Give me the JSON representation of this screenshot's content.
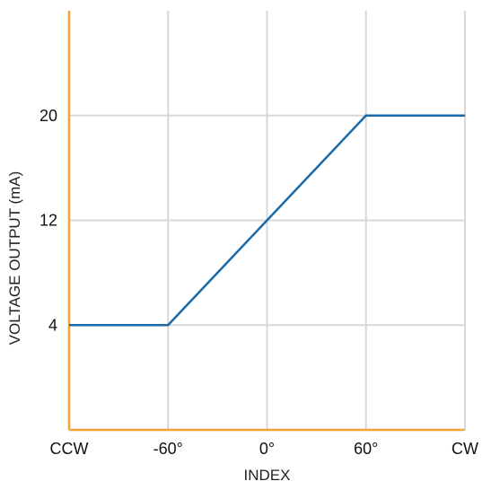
{
  "chart_data": {
    "type": "line",
    "title": "",
    "xlabel": "INDEX",
    "ylabel": "VOLTAGE OUTPUT (mA)",
    "x_categories": [
      "CCW",
      "-60°",
      "0°",
      "60°",
      "CW"
    ],
    "y_ticks": [
      4,
      12,
      20
    ],
    "ylim": [
      -4,
      28
    ],
    "grid": true,
    "legend": "none",
    "series": [
      {
        "points": [
          {
            "x": "CCW",
            "y": 4
          },
          {
            "x": "-60°",
            "y": 4
          },
          {
            "x": "0°",
            "y": 12
          },
          {
            "x": "60°",
            "y": 20
          },
          {
            "x": "CW",
            "y": 20
          }
        ]
      }
    ],
    "colors": {
      "line": "#1a6aa8",
      "axis": "#f0a630",
      "grid": "#d8d8d8"
    }
  }
}
